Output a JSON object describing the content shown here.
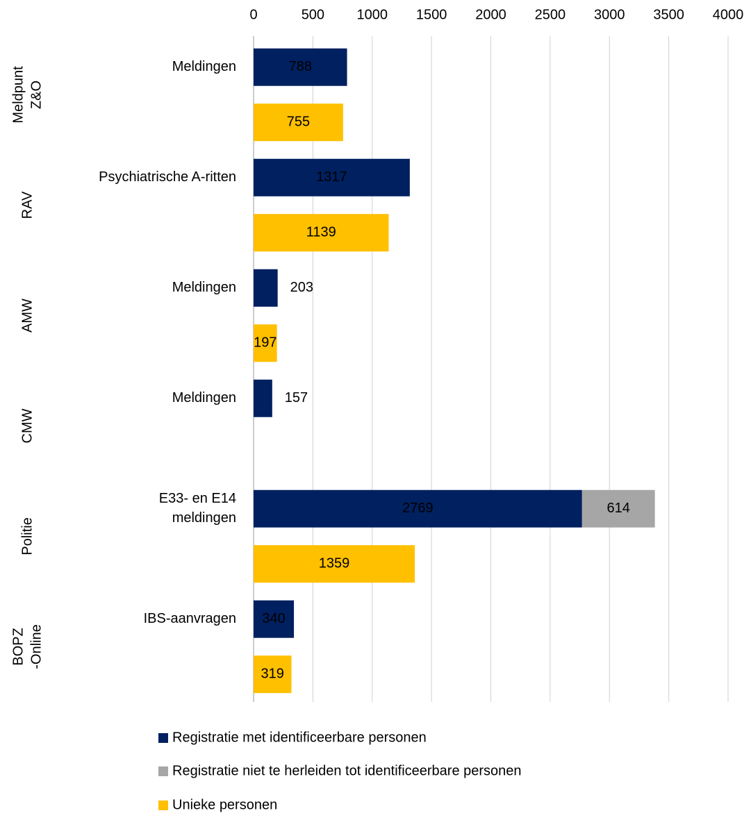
{
  "chart_data": {
    "type": "stacked_barh",
    "xlim": [
      0,
      4000
    ],
    "xticks": [
      0,
      500,
      1000,
      1500,
      2000,
      2500,
      3000,
      3500,
      4000
    ],
    "grid": true,
    "legend": "bottom",
    "categories": [
      "Meldingen",
      null,
      "Psychiatrische A-ritten",
      null,
      "Meldingen",
      null,
      "Meldingen",
      null,
      [
        "E33- en E14",
        "meldingen"
      ],
      null,
      "IBS-aanvragen",
      null
    ],
    "groups": [
      {
        "label": [
          "Meldpunt",
          "Z&O"
        ],
        "rows": [
          0,
          1
        ]
      },
      {
        "label": [
          "RAV"
        ],
        "rows": [
          2,
          3
        ]
      },
      {
        "label": [
          "AMW"
        ],
        "rows": [
          4,
          5
        ]
      },
      {
        "label": [
          "CMW"
        ],
        "rows": [
          6,
          7
        ]
      },
      {
        "label": [
          "Politie"
        ],
        "rows": [
          8,
          9
        ]
      },
      {
        "label": [
          "BOPZ",
          "-Online"
        ],
        "rows": [
          10,
          11
        ]
      }
    ],
    "series": [
      {
        "name": "Registratie met identificeerbare personen",
        "color": "#002060",
        "label_color": "#ffffff",
        "values": [
          788,
          null,
          1317,
          null,
          203,
          null,
          157,
          null,
          2769,
          null,
          340,
          null
        ]
      },
      {
        "name": "Registratie niet te herleiden tot identificeerbare personen",
        "color": "#a6a6a6",
        "label_color": "#002060",
        "values": [
          null,
          null,
          null,
          null,
          null,
          null,
          null,
          null,
          614,
          null,
          null,
          null
        ]
      },
      {
        "name": "Unieke personen",
        "color": "#ffc000",
        "label_color": "#000000",
        "values": [
          null,
          755,
          null,
          1139,
          null,
          197,
          null,
          null,
          null,
          1359,
          null,
          319
        ]
      }
    ]
  }
}
